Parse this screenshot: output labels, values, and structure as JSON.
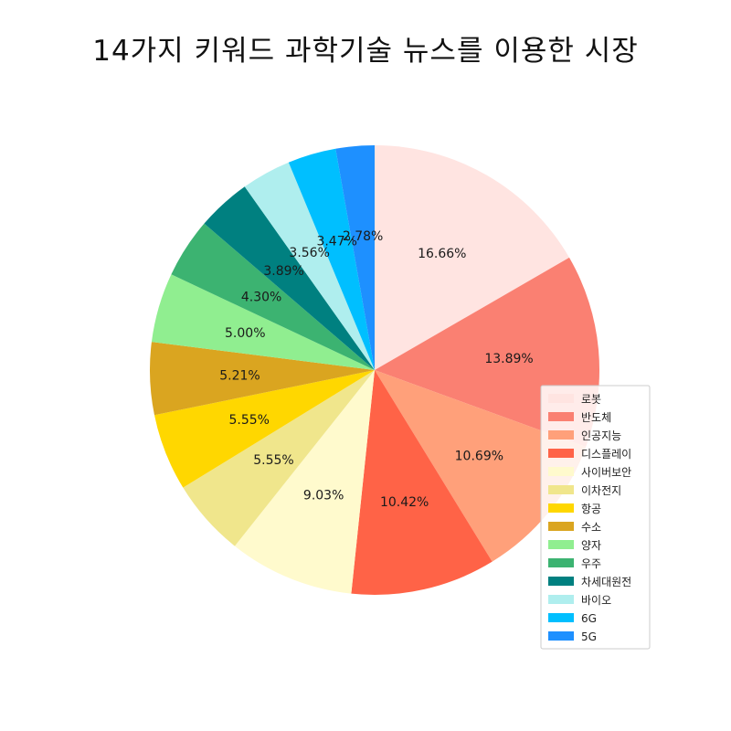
{
  "chart_data": {
    "type": "pie",
    "title": "14가지 키워드 과학기술 뉴스를 이용한 시장",
    "start": "top, clockwise",
    "legend_position": "right",
    "slices": [
      {
        "label": "로봇",
        "value": 16.66,
        "label_text": "16.66%",
        "color": "#FFE4E1"
      },
      {
        "label": "반도체",
        "value": 13.89,
        "label_text": "13.89%",
        "color": "#FA8072"
      },
      {
        "label": "인공지능",
        "value": 10.69,
        "label_text": "10.69%",
        "color": "#FFA07A"
      },
      {
        "label": "디스플레이",
        "value": 10.42,
        "label_text": "10.42%",
        "color": "#FF6347"
      },
      {
        "label": "사이버보안",
        "value": 9.03,
        "label_text": "9.03%",
        "color": "#FFFACD"
      },
      {
        "label": "이차전지",
        "value": 5.55,
        "label_text": "5.55%",
        "color": "#F0E68C"
      },
      {
        "label": "항공",
        "value": 5.55,
        "label_text": "5.55%",
        "color": "#FFD700"
      },
      {
        "label": "수소",
        "value": 5.21,
        "label_text": "5.21%",
        "color": "#DAA520"
      },
      {
        "label": "양자",
        "value": 5.0,
        "label_text": "5.00%",
        "color": "#90EE90"
      },
      {
        "label": "우주",
        "value": 4.3,
        "label_text": "4.30%",
        "color": "#3CB371"
      },
      {
        "label": "차세대원전",
        "value": 3.89,
        "label_text": "3.89%",
        "color": "#008080"
      },
      {
        "label": "바이오",
        "value": 3.56,
        "label_text": "3.56%",
        "color": "#AFEEEE"
      },
      {
        "label": "6G",
        "value": 3.47,
        "label_text": "3.47%",
        "color": "#00BFFF"
      },
      {
        "label": "5G",
        "value": 2.78,
        "label_text": "2.78%",
        "color": "#1E90FF"
      }
    ]
  }
}
